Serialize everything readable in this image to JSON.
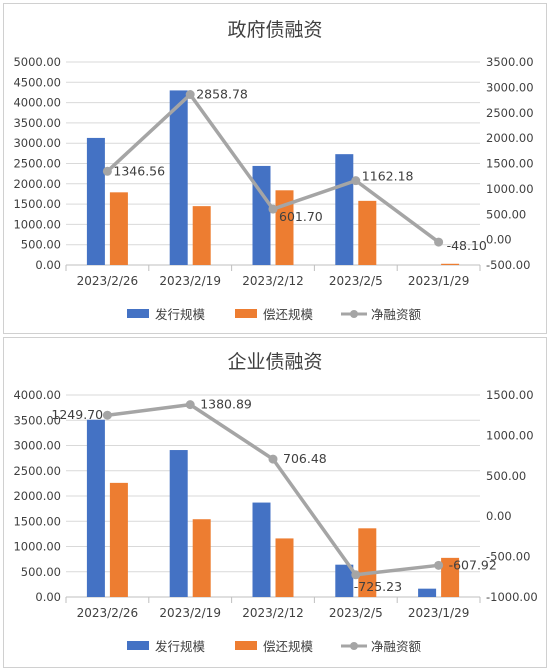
{
  "chart_data": [
    {
      "type": "bar",
      "title": "政府债融资",
      "categories": [
        "2023/2/26",
        "2023/2/19",
        "2023/2/12",
        "2023/2/5",
        "2023/1/29"
      ],
      "ylim": [
        0,
        5000
      ],
      "y_ticks": [
        "0.00",
        "500.00",
        "1000.00",
        "1500.00",
        "2000.00",
        "2500.00",
        "3000.00",
        "3500.00",
        "4000.00",
        "4500.00",
        "5000.00"
      ],
      "y2lim": [
        -500,
        3500
      ],
      "y2_ticks": [
        "-500.00",
        "0.00",
        "500.00",
        "1000.00",
        "1500.00",
        "2000.00",
        "2500.00",
        "3000.00",
        "3500.00"
      ],
      "legend_position": "bottom",
      "grid": true,
      "series": [
        {
          "name": "发行规模",
          "kind": "bar",
          "axis": "left",
          "color": "#4472C4",
          "values": [
            3130,
            4300,
            2440,
            2730,
            0
          ]
        },
        {
          "name": "偿还规模",
          "kind": "bar",
          "axis": "left",
          "color": "#ED7D31",
          "values": [
            1790,
            1450,
            1840,
            1580,
            30
          ]
        },
        {
          "name": "净融资额",
          "kind": "line",
          "axis": "right",
          "color": "#A5A5A5",
          "values": [
            1346.56,
            2858.78,
            601.7,
            1162.18,
            -48.1
          ],
          "labels": [
            "1346.56",
            "2858.78",
            "601.70",
            "1162.18",
            "-48.10"
          ]
        }
      ]
    },
    {
      "type": "bar",
      "title": "企业债融资",
      "categories": [
        "2023/2/26",
        "2023/2/19",
        "2023/2/12",
        "2023/2/5",
        "2023/1/29"
      ],
      "ylim": [
        0,
        4000
      ],
      "y_ticks": [
        "0.00",
        "500.00",
        "1000.00",
        "1500.00",
        "2000.00",
        "2500.00",
        "3000.00",
        "3500.00",
        "4000.00"
      ],
      "y2lim": [
        -1000,
        1500
      ],
      "y2_ticks": [
        "-1000.00",
        "-500.00",
        "0.00",
        "500.00",
        "1000.00",
        "1500.00"
      ],
      "legend_position": "bottom",
      "grid": true,
      "series": [
        {
          "name": "发行规模",
          "kind": "bar",
          "axis": "left",
          "color": "#4472C4",
          "values": [
            3510,
            2910,
            1870,
            640,
            165
          ]
        },
        {
          "name": "偿还规模",
          "kind": "bar",
          "axis": "left",
          "color": "#ED7D31",
          "values": [
            2260,
            1540,
            1160,
            1360,
            775
          ]
        },
        {
          "name": "净融资额",
          "kind": "line",
          "axis": "right",
          "color": "#A5A5A5",
          "values": [
            1249.7,
            1380.89,
            706.48,
            -725.23,
            -607.92
          ],
          "labels": [
            "1249.70",
            "1380.89",
            "706.48",
            "-725.23",
            "-607.92"
          ]
        }
      ]
    }
  ]
}
